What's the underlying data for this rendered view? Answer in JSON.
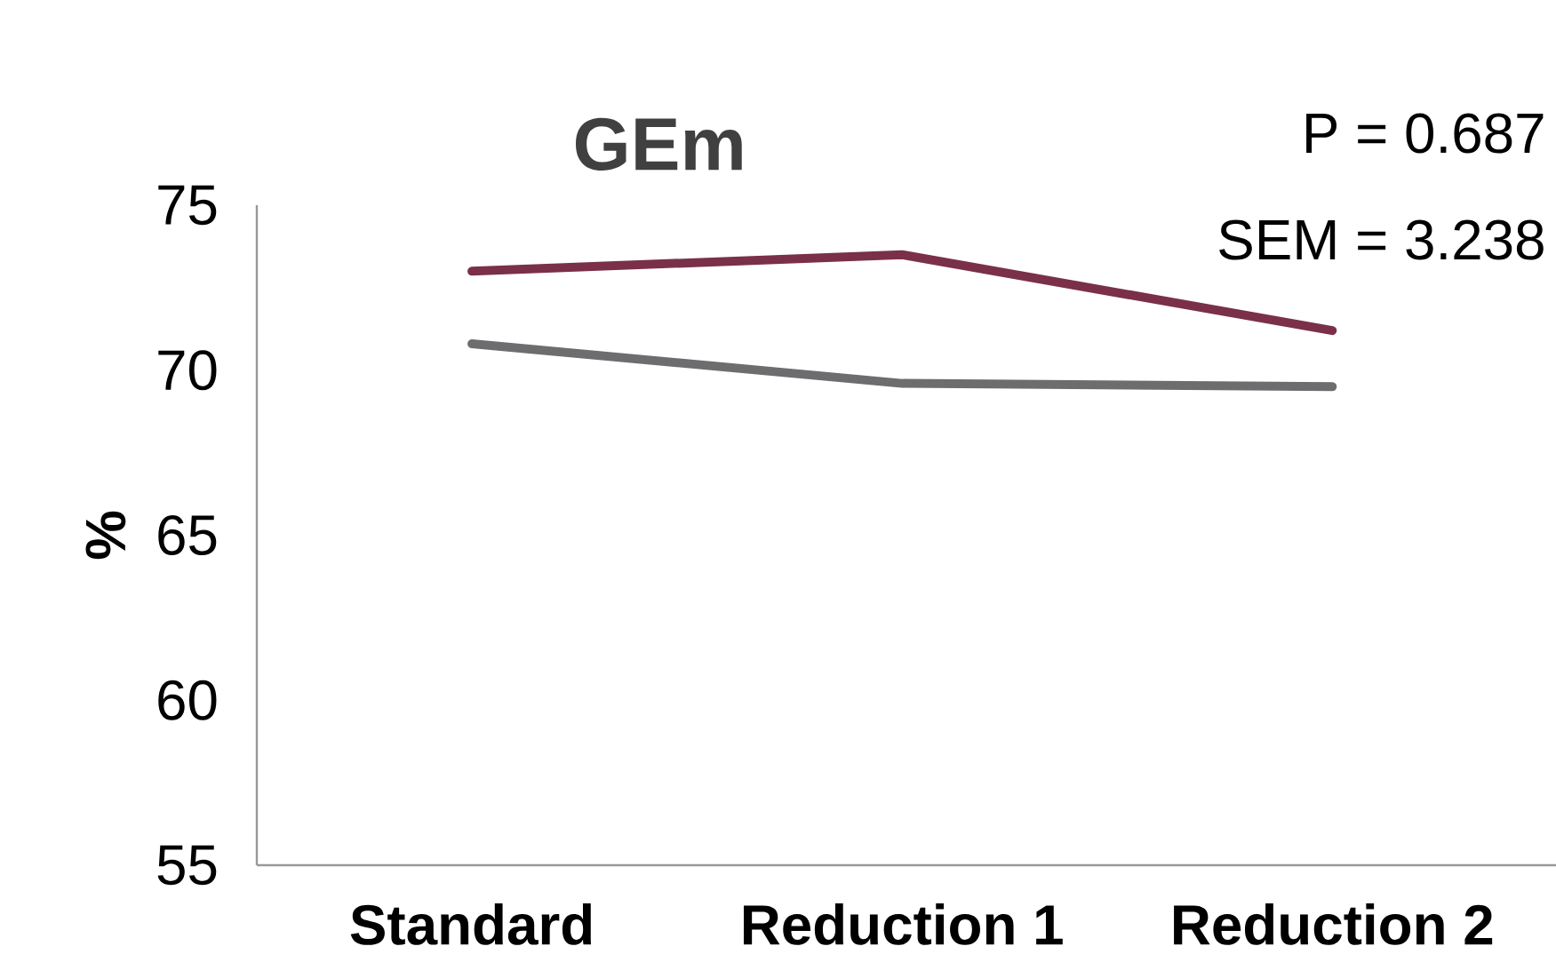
{
  "chart_data": {
    "type": "line",
    "title": "GEm",
    "ylabel": "%",
    "categories": [
      "Standard",
      "Reduction 1",
      "Reduction 2"
    ],
    "series": [
      {
        "color": "#7a3048",
        "values": [
          73.0,
          73.5,
          71.2
        ]
      },
      {
        "color": "#6d6d70",
        "values": [
          70.8,
          69.6,
          69.5
        ]
      }
    ],
    "ylim": [
      55,
      75
    ],
    "yticks": [
      55,
      60,
      65,
      70,
      75
    ],
    "annotations": [
      "P = 0.687",
      "SEM = 3.238"
    ]
  }
}
